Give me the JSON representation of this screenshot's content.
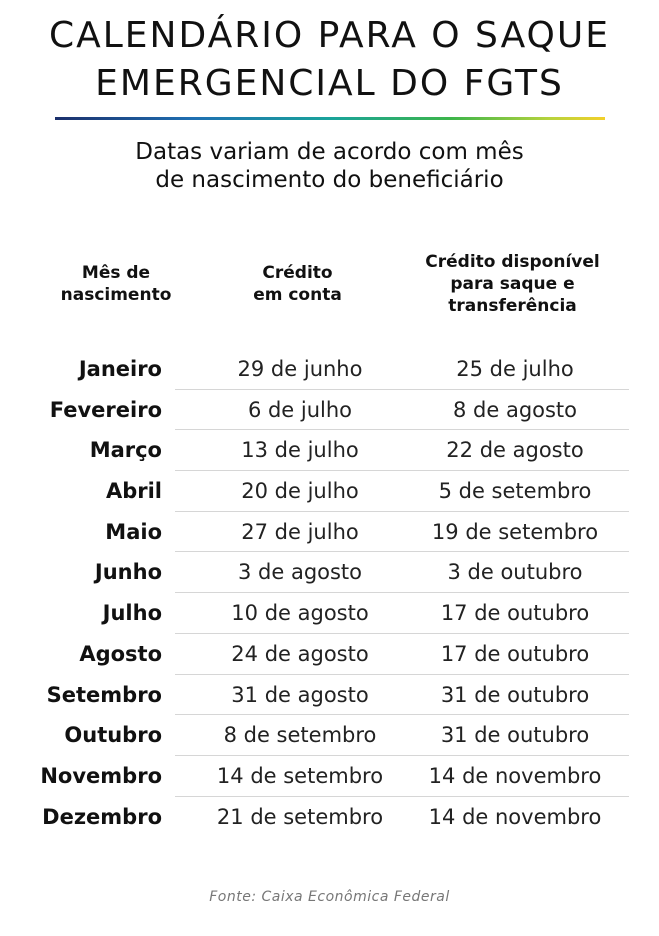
{
  "title": {
    "line1": "CALENDÁRIO PARA O SAQUE",
    "line2": "EMERGENCIAL DO FGTS"
  },
  "subtitle": {
    "line1": "Datas variam de acordo com mês",
    "line2": "de nascimento do beneficiário"
  },
  "columns": {
    "month": [
      "Mês de",
      "nascimento"
    ],
    "credit": [
      "Crédito",
      "em conta"
    ],
    "available": [
      "Crédito disponível",
      "para saque e",
      "transferência"
    ]
  },
  "rows": [
    {
      "month": "Janeiro",
      "credit": "29 de junho",
      "available": "25 de julho"
    },
    {
      "month": "Fevereiro",
      "credit": "6 de julho",
      "available": "8 de agosto"
    },
    {
      "month": "Março",
      "credit": "13 de julho",
      "available": "22 de agosto"
    },
    {
      "month": "Abril",
      "credit": "20 de julho",
      "available": "5 de setembro"
    },
    {
      "month": "Maio",
      "credit": "27 de julho",
      "available": "19 de setembro"
    },
    {
      "month": "Junho",
      "credit": "3 de agosto",
      "available": "3 de outubro"
    },
    {
      "month": "Julho",
      "credit": "10 de agosto",
      "available": "17 de outubro"
    },
    {
      "month": "Agosto",
      "credit": "24 de agosto",
      "available": "17 de outubro"
    },
    {
      "month": "Setembro",
      "credit": "31 de agosto",
      "available": "31 de outubro"
    },
    {
      "month": "Outubro",
      "credit": "8 de setembro",
      "available": "31 de outubro"
    },
    {
      "month": "Novembro",
      "credit": "14 de setembro",
      "available": "14 de novembro"
    },
    {
      "month": "Dezembro",
      "credit": "21 de setembro",
      "available": "14 de novembro"
    }
  ],
  "source": "Fonte: Caixa Econômica Federal"
}
